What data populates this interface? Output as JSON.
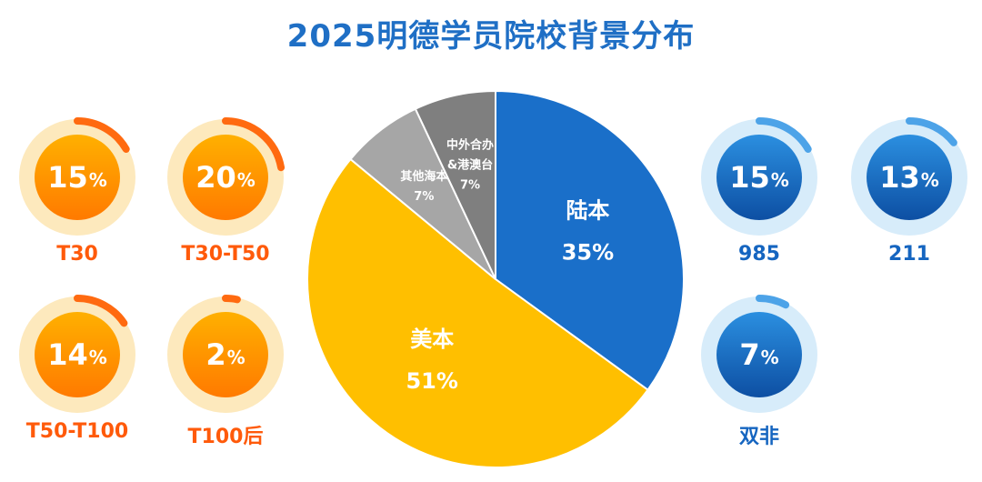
{
  "title": "2025明德学员院校背景分布",
  "colors": {
    "title": "#1f6fc5",
    "orange_ring": "#fde9bd",
    "orange_arc": "#ff6a10",
    "orange_fill": "#ff8a00",
    "blue_ring": "#d7ecfa",
    "blue_arc": "#4da3e8",
    "blue_fill": "#1565c0"
  },
  "left_badges": [
    {
      "label": "T30",
      "value": 15
    },
    {
      "label": "T30-T50",
      "value": 20
    },
    {
      "label": "T50-T100",
      "value": 14
    },
    {
      "label": "T100后",
      "value": 2
    }
  ],
  "right_badges": [
    {
      "label": "985",
      "value": 15
    },
    {
      "label": "211",
      "value": 13
    },
    {
      "label": "双非",
      "value": 7
    }
  ],
  "percent_sign": "%",
  "chart_data": {
    "type": "pie",
    "slices": [
      {
        "label": "陆本",
        "value": 35,
        "display": "35%",
        "color": "#1a6fc9"
      },
      {
        "label": "美本",
        "value": 51,
        "display": "51%",
        "color": "#ffbf00"
      },
      {
        "label": "其他海本",
        "value": 7,
        "display": "7%",
        "color": "#a6a6a6"
      },
      {
        "label": "中外合办 &港澳台",
        "value": 7,
        "display": "7%",
        "color": "#7f7f7f"
      }
    ]
  }
}
